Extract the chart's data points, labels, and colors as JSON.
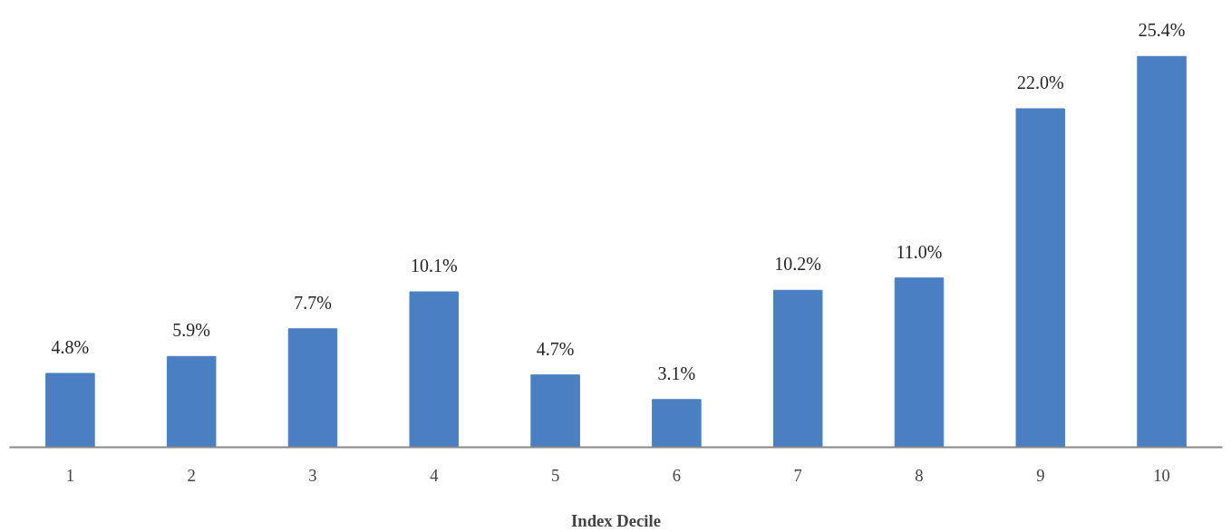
{
  "chart_data": {
    "type": "bar",
    "xlabel": "Index Decile",
    "categories": [
      "1",
      "2",
      "3",
      "4",
      "5",
      "6",
      "7",
      "8",
      "9",
      "10"
    ],
    "values": [
      4.8,
      5.9,
      7.7,
      10.1,
      4.7,
      3.1,
      10.2,
      11.0,
      22.0,
      25.4
    ],
    "value_labels": [
      "4.8%",
      "5.9%",
      "7.7%",
      "10.1%",
      "4.7%",
      "3.1%",
      "10.2%",
      "11.0%",
      "22.0%",
      "25.4%"
    ],
    "color": "#4a7fc1",
    "grid": false
  }
}
